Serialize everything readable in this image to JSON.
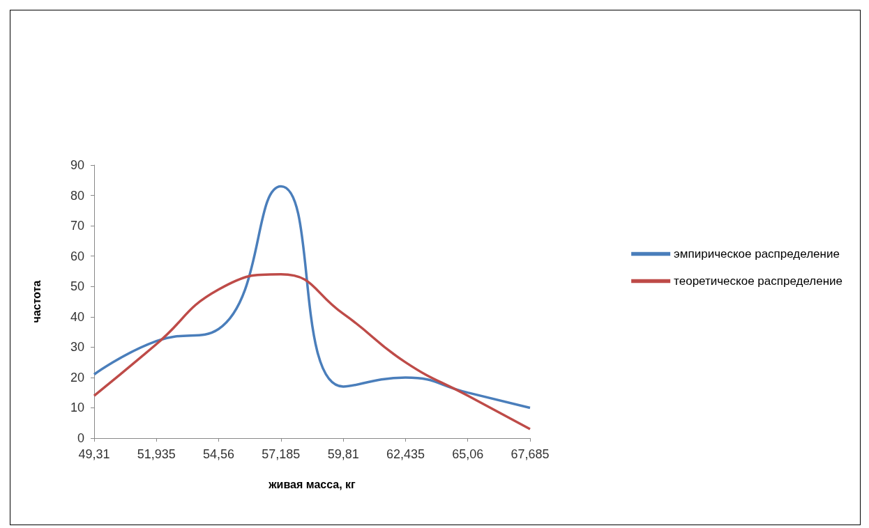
{
  "chart_data": {
    "type": "line",
    "xlabel": "живая масса, кг",
    "ylabel": "частота",
    "categories": [
      "49,31",
      "51,935",
      "54,56",
      "57,185",
      "59,81",
      "62,435",
      "65,06",
      "67,685"
    ],
    "series": [
      {
        "name": "эмпирическое распределение",
        "color": "#4a7ebb",
        "values": [
          21,
          32,
          36,
          83,
          17,
          20,
          15,
          10
        ]
      },
      {
        "name": "теоретическое распределение",
        "color": "#be4b48",
        "values": [
          14,
          31,
          49,
          54,
          41,
          25,
          14,
          3
        ]
      }
    ],
    "ylim": [
      0,
      90
    ],
    "yticks": [
      0,
      10,
      20,
      30,
      40,
      50,
      60,
      70,
      80,
      90
    ],
    "grid": false,
    "legend": "right",
    "marker": "none",
    "line_style": "solid"
  }
}
